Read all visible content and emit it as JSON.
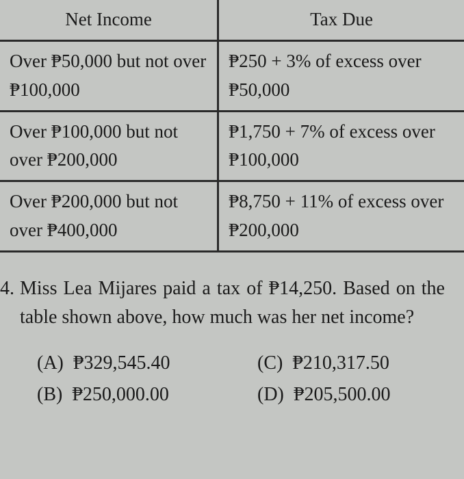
{
  "table": {
    "headers": [
      "Net Income",
      "Tax Due"
    ],
    "rows": [
      {
        "income": "Over ₱50,000 but not over ₱100,000",
        "tax": "₱250 + 3% of excess over ₱50,000"
      },
      {
        "income": "Over ₱100,000 but not over ₱200,000",
        "tax": "₱1,750 + 7% of excess over ₱100,000"
      },
      {
        "income": "Over ₱200,000 but not over ₱400,000",
        "tax": "₱8,750 + 11% of excess over ₱200,000"
      }
    ]
  },
  "question": {
    "number": "4.",
    "text": "Miss Lea Mijares paid a tax of ₱14,250. Based on the table shown above, how much was her net income?"
  },
  "choices": {
    "a": {
      "label": "(A)",
      "value": "₱329,545.40"
    },
    "c": {
      "label": "(C)",
      "value": "₱210,317.50"
    },
    "b": {
      "label": "(B)",
      "value": "₱250,000.00"
    },
    "d": {
      "label": "(D)",
      "value": "₱205,500.00"
    }
  }
}
